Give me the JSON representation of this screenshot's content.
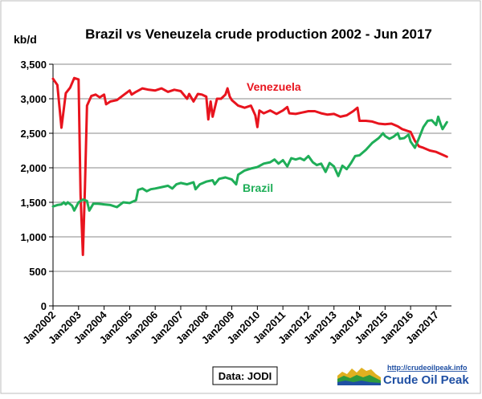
{
  "chart_data": {
    "type": "line",
    "title": "Brazil vs Veneuzela crude production 2002 - Jun 2017",
    "ylabel": "kb/d",
    "xlabel": "",
    "ylim": [
      0,
      3500
    ],
    "xlim": [
      2002.0,
      2017.6
    ],
    "grid": "horizontal",
    "yticks": [
      "0",
      "500",
      "1,000",
      "1,500",
      "2,000",
      "2,500",
      "3,000",
      "3,500"
    ],
    "ytick_values": [
      0,
      500,
      1000,
      1500,
      2000,
      2500,
      3000,
      3500
    ],
    "xticks": [
      "Jan2002",
      "Jan2003",
      "Jan2004",
      "Jan2005",
      "Jan2006",
      "Jan2007",
      "Jan2008",
      "Jan2009",
      "Jan2010",
      "Jan2011",
      "Jan2012",
      "Jan2013",
      "Jan2014",
      "Jan2015",
      "Jan2016",
      "Jan2017"
    ],
    "xtick_values": [
      2002,
      2003,
      2004,
      2005,
      2006,
      2007,
      2008,
      2009,
      2010,
      2011,
      2012,
      2013,
      2014,
      2015,
      2016,
      2017
    ],
    "series": [
      {
        "name": "Venezuela",
        "color": "#e8141e",
        "points": [
          [
            2002.0,
            3290
          ],
          [
            2002.17,
            3200
          ],
          [
            2002.33,
            2580
          ],
          [
            2002.5,
            3080
          ],
          [
            2002.67,
            3160
          ],
          [
            2002.83,
            3300
          ],
          [
            2003.0,
            3280
          ],
          [
            2003.08,
            1600
          ],
          [
            2003.17,
            740
          ],
          [
            2003.25,
            1700
          ],
          [
            2003.33,
            2900
          ],
          [
            2003.5,
            3040
          ],
          [
            2003.67,
            3060
          ],
          [
            2003.83,
            3020
          ],
          [
            2004.0,
            3060
          ],
          [
            2004.08,
            2920
          ],
          [
            2004.25,
            2960
          ],
          [
            2004.5,
            2980
          ],
          [
            2004.75,
            3050
          ],
          [
            2005.0,
            3120
          ],
          [
            2005.08,
            3060
          ],
          [
            2005.25,
            3100
          ],
          [
            2005.5,
            3150
          ],
          [
            2005.75,
            3130
          ],
          [
            2006.0,
            3120
          ],
          [
            2006.25,
            3150
          ],
          [
            2006.5,
            3100
          ],
          [
            2006.75,
            3130
          ],
          [
            2007.0,
            3110
          ],
          [
            2007.25,
            3000
          ],
          [
            2007.33,
            3070
          ],
          [
            2007.5,
            2960
          ],
          [
            2007.67,
            3070
          ],
          [
            2007.83,
            3060
          ],
          [
            2008.0,
            3030
          ],
          [
            2008.08,
            2700
          ],
          [
            2008.17,
            2960
          ],
          [
            2008.25,
            2740
          ],
          [
            2008.42,
            3000
          ],
          [
            2008.58,
            3000
          ],
          [
            2008.75,
            3060
          ],
          [
            2008.83,
            3150
          ],
          [
            2008.92,
            3030
          ],
          [
            2009.0,
            2980
          ],
          [
            2009.25,
            2900
          ],
          [
            2009.5,
            2870
          ],
          [
            2009.75,
            2900
          ],
          [
            2009.92,
            2760
          ],
          [
            2010.0,
            2590
          ],
          [
            2010.08,
            2830
          ],
          [
            2010.25,
            2790
          ],
          [
            2010.5,
            2830
          ],
          [
            2010.75,
            2780
          ],
          [
            2011.0,
            2830
          ],
          [
            2011.17,
            2880
          ],
          [
            2011.25,
            2790
          ],
          [
            2011.5,
            2780
          ],
          [
            2011.75,
            2800
          ],
          [
            2012.0,
            2820
          ],
          [
            2012.25,
            2820
          ],
          [
            2012.5,
            2790
          ],
          [
            2012.75,
            2770
          ],
          [
            2013.0,
            2780
          ],
          [
            2013.25,
            2740
          ],
          [
            2013.5,
            2760
          ],
          [
            2013.75,
            2820
          ],
          [
            2013.92,
            2870
          ],
          [
            2014.0,
            2680
          ],
          [
            2014.25,
            2680
          ],
          [
            2014.5,
            2670
          ],
          [
            2014.75,
            2640
          ],
          [
            2015.0,
            2630
          ],
          [
            2015.25,
            2640
          ],
          [
            2015.5,
            2600
          ],
          [
            2015.67,
            2560
          ],
          [
            2015.83,
            2540
          ],
          [
            2016.0,
            2520
          ],
          [
            2016.17,
            2390
          ],
          [
            2016.33,
            2310
          ],
          [
            2016.5,
            2290
          ],
          [
            2016.75,
            2250
          ],
          [
            2017.0,
            2230
          ],
          [
            2017.25,
            2190
          ],
          [
            2017.42,
            2160
          ]
        ]
      },
      {
        "name": "Brazil",
        "color": "#1fae58",
        "points": [
          [
            2002.0,
            1440
          ],
          [
            2002.17,
            1460
          ],
          [
            2002.33,
            1470
          ],
          [
            2002.42,
            1500
          ],
          [
            2002.5,
            1470
          ],
          [
            2002.58,
            1500
          ],
          [
            2002.75,
            1450
          ],
          [
            2002.83,
            1380
          ],
          [
            2003.0,
            1500
          ],
          [
            2003.17,
            1540
          ],
          [
            2003.33,
            1520
          ],
          [
            2003.42,
            1380
          ],
          [
            2003.58,
            1480
          ],
          [
            2003.75,
            1480
          ],
          [
            2004.0,
            1470
          ],
          [
            2004.25,
            1460
          ],
          [
            2004.5,
            1430
          ],
          [
            2004.75,
            1500
          ],
          [
            2005.0,
            1490
          ],
          [
            2005.25,
            1530
          ],
          [
            2005.33,
            1680
          ],
          [
            2005.5,
            1700
          ],
          [
            2005.67,
            1660
          ],
          [
            2005.83,
            1690
          ],
          [
            2006.0,
            1700
          ],
          [
            2006.25,
            1720
          ],
          [
            2006.5,
            1740
          ],
          [
            2006.67,
            1700
          ],
          [
            2006.83,
            1760
          ],
          [
            2007.0,
            1780
          ],
          [
            2007.25,
            1760
          ],
          [
            2007.5,
            1790
          ],
          [
            2007.58,
            1690
          ],
          [
            2007.75,
            1760
          ],
          [
            2008.0,
            1800
          ],
          [
            2008.25,
            1820
          ],
          [
            2008.33,
            1760
          ],
          [
            2008.5,
            1840
          ],
          [
            2008.75,
            1860
          ],
          [
            2009.0,
            1830
          ],
          [
            2009.17,
            1760
          ],
          [
            2009.25,
            1900
          ],
          [
            2009.5,
            1960
          ],
          [
            2009.75,
            1990
          ],
          [
            2010.0,
            2010
          ],
          [
            2010.25,
            2060
          ],
          [
            2010.5,
            2080
          ],
          [
            2010.67,
            2120
          ],
          [
            2010.83,
            2060
          ],
          [
            2011.0,
            2110
          ],
          [
            2011.17,
            2020
          ],
          [
            2011.33,
            2140
          ],
          [
            2011.5,
            2120
          ],
          [
            2011.67,
            2140
          ],
          [
            2011.83,
            2110
          ],
          [
            2012.0,
            2170
          ],
          [
            2012.17,
            2080
          ],
          [
            2012.33,
            2040
          ],
          [
            2012.5,
            2060
          ],
          [
            2012.67,
            1940
          ],
          [
            2012.83,
            2070
          ],
          [
            2013.0,
            2020
          ],
          [
            2013.17,
            1880
          ],
          [
            2013.33,
            2030
          ],
          [
            2013.5,
            1980
          ],
          [
            2013.67,
            2070
          ],
          [
            2013.83,
            2170
          ],
          [
            2014.0,
            2180
          ],
          [
            2014.25,
            2260
          ],
          [
            2014.5,
            2360
          ],
          [
            2014.75,
            2430
          ],
          [
            2014.92,
            2500
          ],
          [
            2015.0,
            2460
          ],
          [
            2015.17,
            2420
          ],
          [
            2015.33,
            2450
          ],
          [
            2015.5,
            2500
          ],
          [
            2015.58,
            2420
          ],
          [
            2015.75,
            2430
          ],
          [
            2015.92,
            2480
          ],
          [
            2016.0,
            2380
          ],
          [
            2016.17,
            2290
          ],
          [
            2016.33,
            2430
          ],
          [
            2016.5,
            2590
          ],
          [
            2016.67,
            2680
          ],
          [
            2016.83,
            2690
          ],
          [
            2017.0,
            2620
          ],
          [
            2017.08,
            2740
          ],
          [
            2017.17,
            2640
          ],
          [
            2017.25,
            2560
          ],
          [
            2017.42,
            2660
          ]
        ]
      }
    ],
    "source": "Data: JODI"
  },
  "logo": {
    "url_text": "http://crudeoilpeak.info",
    "name": "Crude Oil Peak"
  }
}
